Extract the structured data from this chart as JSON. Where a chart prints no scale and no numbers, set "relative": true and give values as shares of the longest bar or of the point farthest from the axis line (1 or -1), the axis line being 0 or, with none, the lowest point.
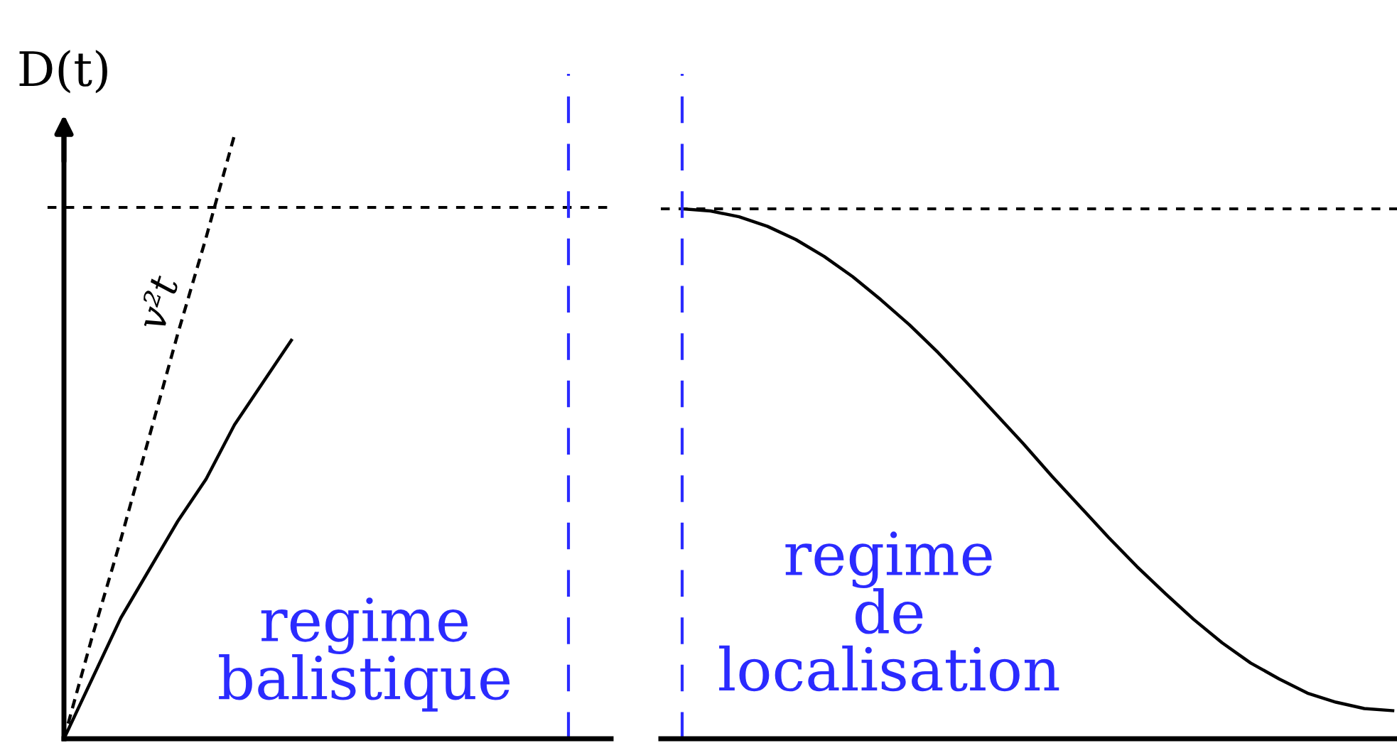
{
  "chart_data": [
    {
      "type": "line",
      "relative": true,
      "ylabel": "D(t)",
      "tick_labels": false,
      "legend": false,
      "categories": [
        null,
        null,
        null,
        null,
        null,
        null,
        null,
        null,
        null,
        null,
        null,
        null,
        null,
        null,
        null,
        null,
        null,
        null,
        null,
        null
      ],
      "series": [
        {
          "name": "v²t",
          "color": "#000000",
          "line_style": "dashed",
          "values": [
            0,
            0.17,
            0.33,
            0.5,
            0.67,
            0.83,
            1,
            null,
            null,
            null,
            null,
            null,
            null,
            null,
            null,
            null,
            null,
            null,
            null,
            null
          ]
        },
        {
          "color": "#000000",
          "line_style": "solid",
          "values": [
            0,
            0.1,
            0.2,
            0.28,
            0.36,
            0.43,
            0.52,
            0.59,
            0.66,
            null,
            null,
            null,
            null,
            null,
            null,
            null,
            null,
            null,
            null,
            null
          ]
        }
      ],
      "ref_lines": [
        {
          "axis": "y",
          "value": 0.88,
          "color": "#000000",
          "line_style": "dotted"
        }
      ],
      "annotations": [
        "regime\nbalistique"
      ]
    },
    {
      "type": "line",
      "relative": true,
      "tick_labels": false,
      "legend": false,
      "categories": [
        null,
        null,
        null,
        null,
        null,
        null,
        null,
        null,
        null,
        null,
        null,
        null,
        null,
        null,
        null,
        null,
        null,
        null,
        null,
        null,
        null,
        null,
        null,
        null,
        null,
        null
      ],
      "series": [
        {
          "color": "#000000",
          "line_style": "solid",
          "values": [
            1,
            0.996,
            0.985,
            0.967,
            0.942,
            0.91,
            0.872,
            0.828,
            0.781,
            0.729,
            0.673,
            0.615,
            0.557,
            0.496,
            0.438,
            0.38,
            0.325,
            0.274,
            0.225,
            0.181,
            0.143,
            0.113,
            0.086,
            0.069,
            0.057,
            0.053
          ]
        }
      ],
      "ref_lines": [
        {
          "axis": "y",
          "value": 1,
          "color": "#000000",
          "line_style": "dotted"
        }
      ],
      "annotations": [
        "regime\nde\nlocalisation"
      ]
    }
  ]
}
